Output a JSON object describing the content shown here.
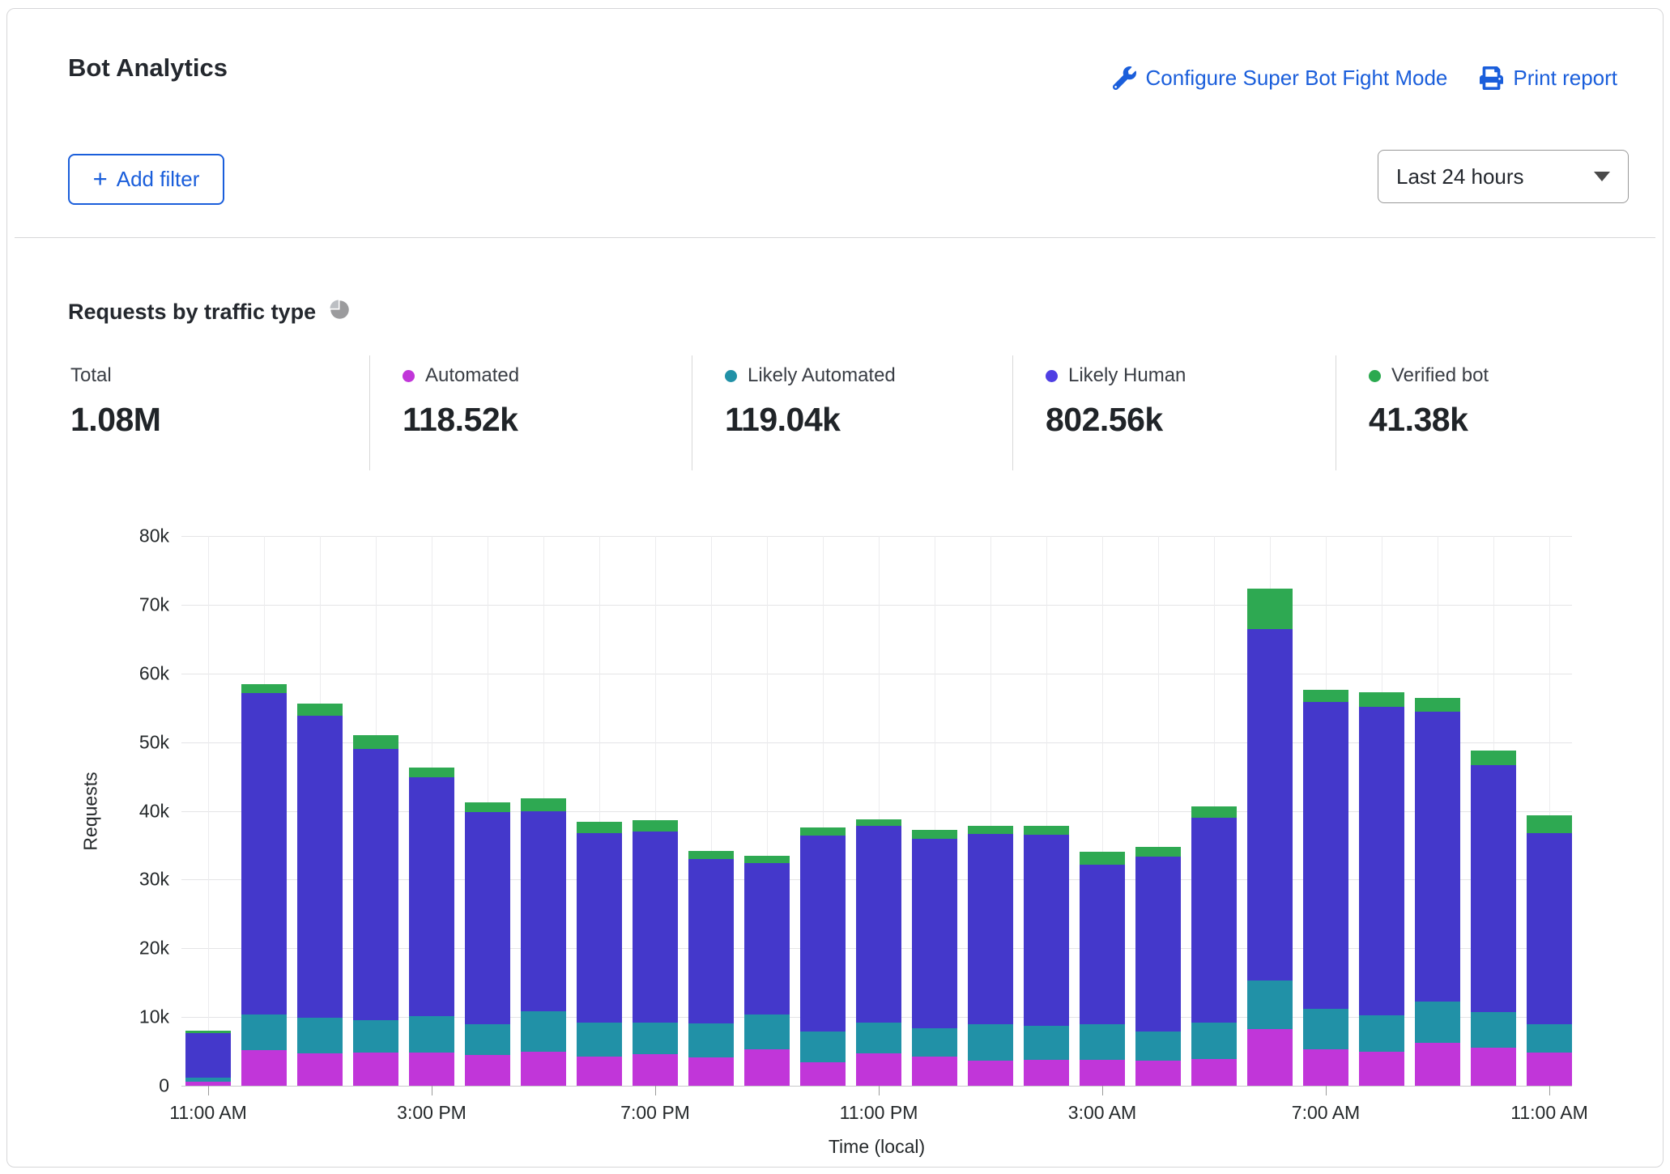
{
  "header": {
    "title": "Bot Analytics",
    "configure_link": "Configure Super Bot Fight Mode",
    "print_link": "Print report",
    "add_filter_label": "Add filter",
    "add_filter_plus": "+",
    "time_range_selected": "Last 24 hours"
  },
  "section": {
    "title": "Requests by traffic type",
    "icon": "pie-chart-icon"
  },
  "stats": [
    {
      "label": "Total",
      "value": "1.08M",
      "color": null
    },
    {
      "label": "Automated",
      "value": "118.52k",
      "color": "#c136d9"
    },
    {
      "label": "Likely Automated",
      "value": "119.04k",
      "color": "#2191a7"
    },
    {
      "label": "Likely Human",
      "value": "802.56k",
      "color": "#4f3fe3"
    },
    {
      "label": "Verified bot",
      "value": "41.38k",
      "color": "#2ba94f"
    }
  ],
  "chart_data": {
    "type": "bar",
    "stacked": true,
    "title": "Requests by traffic type",
    "xlabel": "Time (local)",
    "ylabel": "Requests",
    "ylim": [
      0,
      80000
    ],
    "grid": true,
    "ytick_labels": [
      "0",
      "10k",
      "20k",
      "30k",
      "40k",
      "50k",
      "60k",
      "70k",
      "80k"
    ],
    "xtick_labels": [
      "11:00 AM",
      "3:00 PM",
      "7:00 PM",
      "11:00 PM",
      "3:00 AM",
      "7:00 AM",
      "11:00 AM"
    ],
    "xtick_every": 4,
    "series_order": [
      "automated",
      "likely_automated",
      "likely_human",
      "verified_bot"
    ],
    "series_labels": {
      "automated": "Automated",
      "likely_automated": "Likely Automated",
      "likely_human": "Likely Human",
      "verified_bot": "Verified bot"
    },
    "colors": {
      "automated": "#c136d9",
      "likely_automated": "#2191a7",
      "likely_human": "#4438cb",
      "verified_bot": "#2ea952"
    },
    "bars": [
      {
        "hour": "11:00 AM",
        "automated": 600,
        "likely_automated": 600,
        "likely_human": 6500,
        "verified_bot": 300
      },
      {
        "hour": "12:00 PM",
        "automated": 5200,
        "likely_automated": 5200,
        "likely_human": 46800,
        "verified_bot": 1200
      },
      {
        "hour": "1:00 PM",
        "automated": 4700,
        "likely_automated": 5200,
        "likely_human": 44000,
        "verified_bot": 1700
      },
      {
        "hour": "2:00 PM",
        "automated": 4800,
        "likely_automated": 4800,
        "likely_human": 39400,
        "verified_bot": 2000
      },
      {
        "hour": "3:00 PM",
        "automated": 4800,
        "likely_automated": 5300,
        "likely_human": 34800,
        "verified_bot": 1400
      },
      {
        "hour": "4:00 PM",
        "automated": 4500,
        "likely_automated": 4500,
        "likely_human": 30800,
        "verified_bot": 1400
      },
      {
        "hour": "5:00 PM",
        "automated": 4900,
        "likely_automated": 6000,
        "likely_human": 29100,
        "verified_bot": 1800
      },
      {
        "hour": "6:00 PM",
        "automated": 4200,
        "likely_automated": 5000,
        "likely_human": 27600,
        "verified_bot": 1600
      },
      {
        "hour": "7:00 PM",
        "automated": 4600,
        "likely_automated": 4600,
        "likely_human": 27800,
        "verified_bot": 1600
      },
      {
        "hour": "8:00 PM",
        "automated": 4100,
        "likely_automated": 5000,
        "likely_human": 23900,
        "verified_bot": 1200
      },
      {
        "hour": "9:00 PM",
        "automated": 5300,
        "likely_automated": 5100,
        "likely_human": 22000,
        "verified_bot": 1100
      },
      {
        "hour": "10:00 PM",
        "automated": 3400,
        "likely_automated": 4500,
        "likely_human": 28500,
        "verified_bot": 1200
      },
      {
        "hour": "11:00 PM",
        "automated": 4700,
        "likely_automated": 4500,
        "likely_human": 28600,
        "verified_bot": 1000
      },
      {
        "hour": "12:00 AM",
        "automated": 4200,
        "likely_automated": 4200,
        "likely_human": 27500,
        "verified_bot": 1300
      },
      {
        "hour": "1:00 AM",
        "automated": 3700,
        "likely_automated": 5200,
        "likely_human": 27800,
        "verified_bot": 1100
      },
      {
        "hour": "2:00 AM",
        "automated": 3800,
        "likely_automated": 4900,
        "likely_human": 27800,
        "verified_bot": 1300
      },
      {
        "hour": "3:00 AM",
        "automated": 3800,
        "likely_automated": 5200,
        "likely_human": 23200,
        "verified_bot": 1800
      },
      {
        "hour": "4:00 AM",
        "automated": 3700,
        "likely_automated": 4200,
        "likely_human": 25400,
        "verified_bot": 1500
      },
      {
        "hour": "5:00 AM",
        "automated": 3900,
        "likely_automated": 5300,
        "likely_human": 29800,
        "verified_bot": 1600
      },
      {
        "hour": "6:00 AM",
        "automated": 8200,
        "likely_automated": 7100,
        "likely_human": 51100,
        "verified_bot": 6000
      },
      {
        "hour": "7:00 AM",
        "automated": 5300,
        "likely_automated": 5900,
        "likely_human": 44600,
        "verified_bot": 1800
      },
      {
        "hour": "8:00 AM",
        "automated": 5000,
        "likely_automated": 5300,
        "likely_human": 44900,
        "verified_bot": 2100
      },
      {
        "hour": "9:00 AM",
        "automated": 6200,
        "likely_automated": 6100,
        "likely_human": 42100,
        "verified_bot": 2000
      },
      {
        "hour": "10:00 AM",
        "automated": 5500,
        "likely_automated": 5200,
        "likely_human": 36000,
        "verified_bot": 2100
      },
      {
        "hour": "11:00 AM",
        "automated": 4800,
        "likely_automated": 4200,
        "likely_human": 27800,
        "verified_bot": 2600
      }
    ]
  }
}
